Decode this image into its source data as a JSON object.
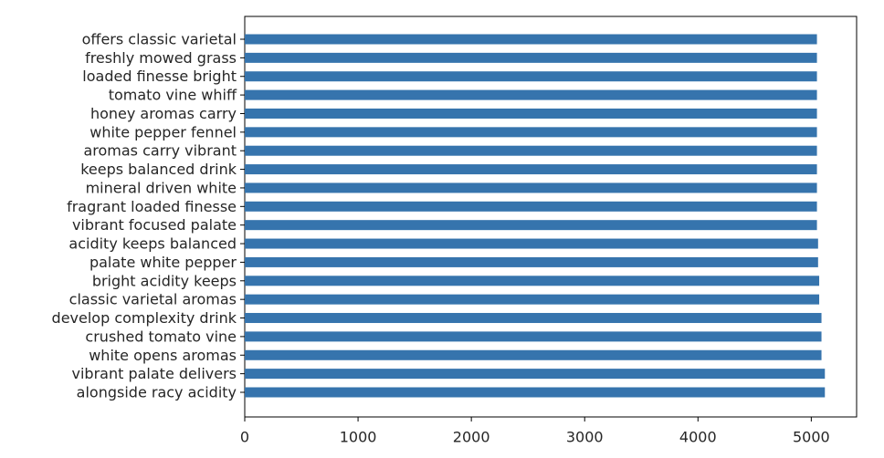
{
  "chart_data": {
    "type": "bar",
    "orientation": "horizontal",
    "title": "",
    "xlabel": "",
    "ylabel": "",
    "categories": [
      "offers classic varietal",
      "freshly mowed grass",
      "loaded finesse bright",
      "tomato vine whiff",
      "honey aromas carry",
      "white pepper fennel",
      "aromas carry vibrant",
      "keeps balanced drink",
      "mineral driven white",
      "fragrant loaded finesse",
      "vibrant focused palate",
      "acidity keeps balanced",
      "palate white pepper",
      "bright acidity keeps",
      "classic varietal aromas",
      "develop complexity drink",
      "crushed tomato vine",
      "white opens aromas",
      "vibrant palate delivers",
      "alongside racy acidity"
    ],
    "values": [
      5050,
      5050,
      5050,
      5050,
      5050,
      5050,
      5050,
      5050,
      5050,
      5050,
      5050,
      5060,
      5060,
      5070,
      5070,
      5090,
      5090,
      5090,
      5120,
      5120
    ],
    "xlim": [
      0,
      5400
    ],
    "xticks": [
      0,
      1000,
      2000,
      3000,
      4000,
      5000
    ],
    "grid": false,
    "legend": "none",
    "bar_color": "#3674ad"
  }
}
